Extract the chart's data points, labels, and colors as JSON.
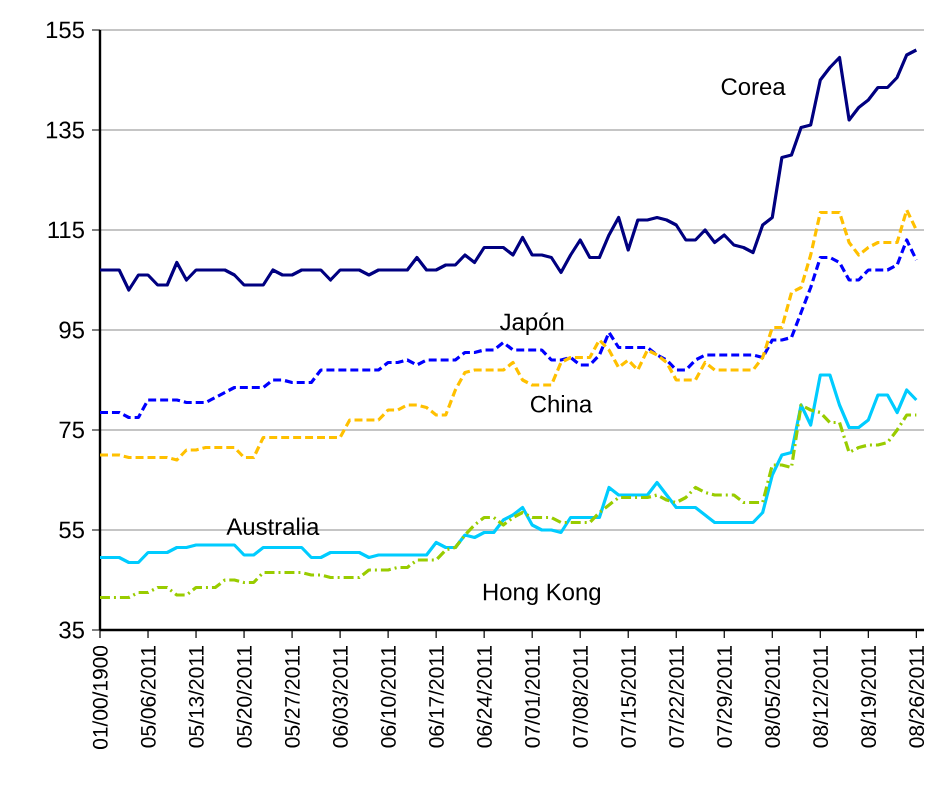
{
  "chart_data": {
    "type": "line",
    "categories": [
      "01/00/1900",
      null,
      null,
      null,
      null,
      "05/06/2011",
      null,
      null,
      null,
      null,
      "05/13/2011",
      null,
      null,
      null,
      null,
      "05/20/2011",
      null,
      null,
      null,
      null,
      "05/27/2011",
      null,
      null,
      null,
      null,
      "06/03/2011",
      null,
      null,
      null,
      null,
      "06/10/2011",
      null,
      null,
      null,
      null,
      "06/17/2011",
      null,
      null,
      null,
      null,
      "06/24/2011",
      null,
      null,
      null,
      null,
      "07/01/2011",
      null,
      null,
      null,
      null,
      "07/08/2011",
      null,
      null,
      null,
      null,
      "07/15/2011",
      null,
      null,
      null,
      null,
      "07/22/2011",
      null,
      null,
      null,
      null,
      "07/29/2011",
      null,
      null,
      null,
      null,
      "08/05/2011",
      null,
      null,
      null,
      null,
      "08/12/2011",
      null,
      null,
      null,
      null,
      "08/19/2011",
      null,
      null,
      null,
      null,
      "08/26/2011"
    ],
    "series": [
      {
        "name": "Corea",
        "color": "#000080",
        "line_style": "solid",
        "values": [
          107,
          107,
          107,
          103,
          106,
          106,
          104,
          104,
          108.5,
          105,
          107,
          107,
          107,
          107,
          106,
          104,
          104,
          104,
          107,
          106,
          106,
          107,
          107,
          107,
          105,
          107,
          107,
          107,
          106,
          107,
          107,
          107,
          107,
          109.5,
          107,
          107,
          108,
          108,
          110,
          108.5,
          111.5,
          111.5,
          111.5,
          110,
          113.5,
          110,
          110,
          109.5,
          106.5,
          110,
          113,
          109.5,
          109.5,
          114,
          117.5,
          111,
          117,
          117,
          117.5,
          117,
          116,
          113,
          113,
          115,
          112.5,
          114,
          112,
          111.5,
          110.5,
          116,
          117.5,
          129.5,
          130,
          135.5,
          136,
          145,
          147.5,
          149.5,
          137,
          139.5,
          141,
          143.5,
          143.5,
          145.5,
          150,
          151
        ]
      },
      {
        "name": "Japón",
        "color": "#0000ff",
        "line_style": "dashed",
        "values": [
          78.5,
          78.5,
          78.5,
          77.5,
          77.5,
          81,
          81,
          81,
          81,
          80.5,
          80.5,
          80.5,
          81.5,
          82.5,
          83.5,
          83.5,
          83.5,
          83.5,
          85,
          85,
          84.5,
          84.5,
          84.5,
          87,
          87,
          87,
          87,
          87,
          87,
          87,
          88.5,
          88.5,
          89,
          88,
          89,
          89,
          89,
          89,
          90.5,
          90.5,
          91,
          91,
          92.5,
          91,
          91,
          91,
          91,
          89,
          89,
          89.5,
          88,
          88,
          90,
          94.5,
          91.5,
          91.5,
          91.5,
          91.5,
          90,
          89,
          87,
          87,
          89,
          90,
          90,
          90,
          90,
          90,
          90,
          89.5,
          93,
          93,
          93.5,
          98.5,
          103.5,
          109.5,
          109.5,
          108.5,
          105,
          105,
          107,
          107,
          107,
          108,
          113,
          109
        ]
      },
      {
        "name": "China",
        "color": "#ffc000",
        "line_style": "dashed",
        "values": [
          70,
          70,
          70,
          69.5,
          69.5,
          69.5,
          69.5,
          69.5,
          69,
          71,
          71,
          71.5,
          71.5,
          71.5,
          71.5,
          69.5,
          69.5,
          73.5,
          73.5,
          73.5,
          73.5,
          73.5,
          73.5,
          73.5,
          73.5,
          73.5,
          77,
          77,
          77,
          77,
          79,
          79,
          80,
          80,
          79.5,
          78,
          78,
          83,
          86.5,
          87,
          87,
          87,
          87,
          88.5,
          85,
          84,
          84,
          84,
          88.5,
          89.5,
          89.5,
          89.5,
          93,
          91,
          87.5,
          89,
          87,
          91,
          90,
          88.5,
          85,
          85,
          85,
          88.5,
          87,
          87,
          87,
          87,
          87,
          89.5,
          95.5,
          95.5,
          102.5,
          103.5,
          110,
          118.5,
          118.5,
          118.5,
          112.5,
          110,
          111.5,
          112.5,
          112.5,
          112.5,
          119,
          115
        ]
      },
      {
        "name": "Australia",
        "color": "#00ccff",
        "line_style": "solid",
        "values": [
          49.5,
          49.5,
          49.5,
          48.5,
          48.5,
          50.5,
          50.5,
          50.5,
          51.5,
          51.5,
          52,
          52,
          52,
          52,
          52,
          50,
          50,
          51.5,
          51.5,
          51.5,
          51.5,
          51.5,
          49.5,
          49.5,
          50.5,
          50.5,
          50.5,
          50.5,
          49.5,
          50,
          50,
          50,
          50,
          50,
          50,
          52.5,
          51.5,
          51.5,
          54,
          53.5,
          54.5,
          54.5,
          57,
          58,
          59.5,
          56,
          55,
          55,
          54.5,
          57.5,
          57.5,
          57.5,
          57.5,
          63.5,
          62,
          62,
          62,
          62,
          64.5,
          62,
          59.5,
          59.5,
          59.5,
          58,
          56.5,
          56.5,
          56.5,
          56.5,
          56.5,
          58.5,
          66,
          70,
          70.5,
          80,
          76,
          86,
          86,
          80,
          75.5,
          75.5,
          77,
          82,
          82,
          78.5,
          83,
          81
        ]
      },
      {
        "name": "Hong Kong",
        "color": "#99cc00",
        "line_style": "dashdot",
        "values": [
          41.5,
          41.5,
          41.5,
          41.5,
          42.5,
          42.5,
          43.5,
          43.5,
          42,
          42,
          43.5,
          43.5,
          43.5,
          45,
          45,
          44.5,
          44.5,
          46.5,
          46.5,
          46.5,
          46.5,
          46.5,
          46,
          46,
          45.5,
          45.5,
          45.5,
          45.5,
          47,
          47,
          47,
          47.5,
          47.5,
          49,
          49,
          49,
          51,
          51.5,
          54,
          56,
          57.5,
          57.5,
          56,
          57.5,
          58.5,
          57.5,
          57.5,
          57.5,
          56.5,
          56.5,
          56.5,
          56.5,
          58.5,
          60,
          61.5,
          61.5,
          61.5,
          61.5,
          62,
          61,
          60.5,
          61.5,
          63.5,
          62.5,
          62,
          62,
          62,
          60.5,
          60.5,
          60.5,
          68,
          68,
          67.5,
          80,
          79,
          78.5,
          76.5,
          76.5,
          70.5,
          71.5,
          72,
          72,
          72.5,
          75,
          78,
          78
        ]
      }
    ],
    "ylim": [
      35,
      155
    ],
    "yticks": [
      35,
      55,
      75,
      95,
      115,
      135,
      155
    ],
    "grid": "y"
  }
}
